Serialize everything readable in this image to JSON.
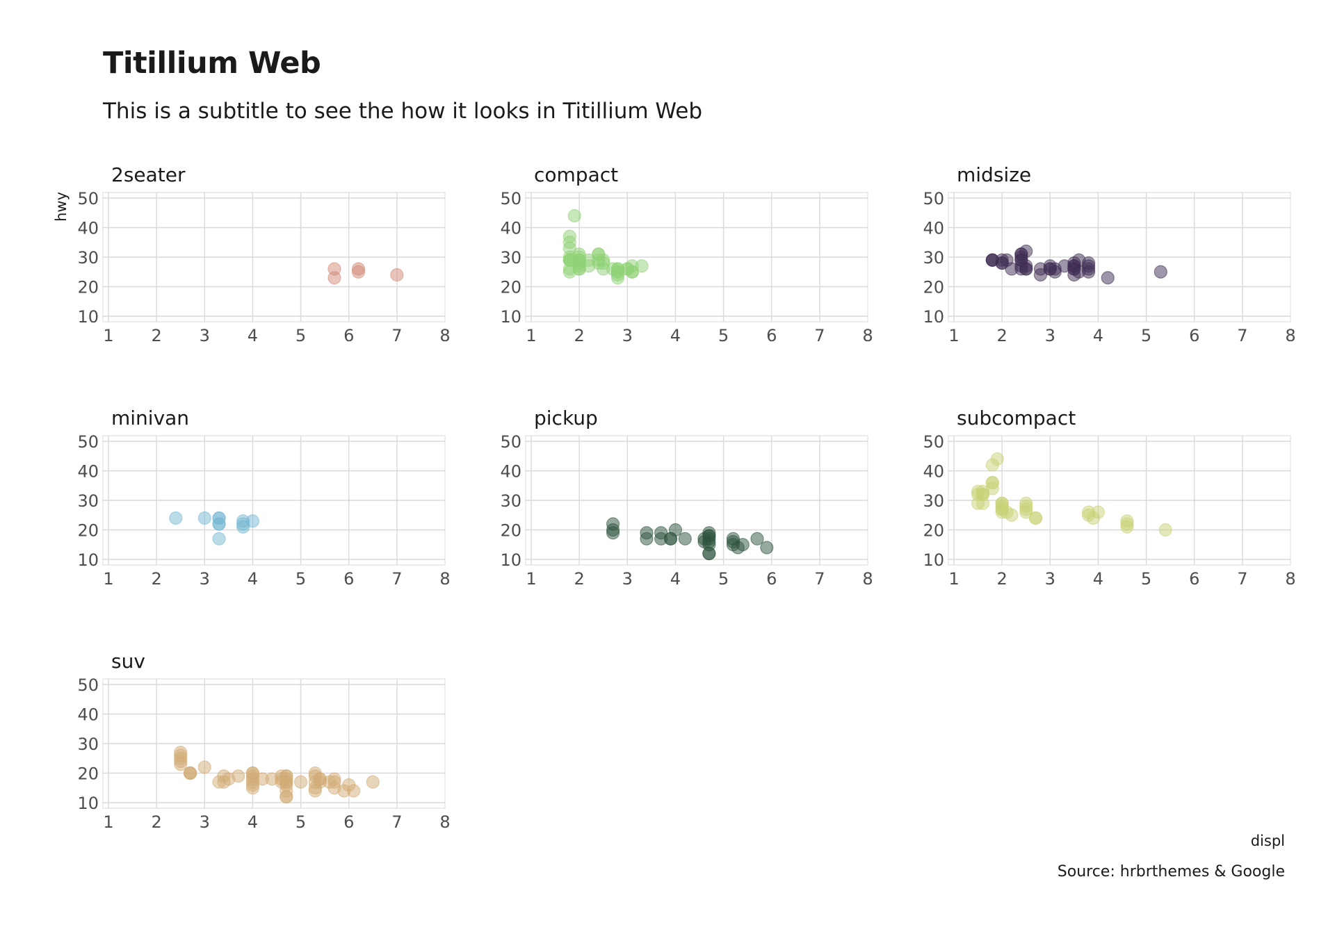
{
  "title": "Titillium Web",
  "subtitle": "This is a subtitle to see the how it looks in Titillium Web",
  "caption": "Source: hrbrthemes & Google",
  "chart_data": {
    "type": "scatter",
    "xlabel": "displ",
    "ylabel": "hwy",
    "xlim": [
      1,
      8
    ],
    "ylim": [
      10,
      50
    ],
    "xticks": [
      1,
      2,
      3,
      4,
      5,
      6,
      7,
      8
    ],
    "yticks": [
      10,
      20,
      30,
      40,
      50
    ],
    "grid": true,
    "facets": [
      {
        "name": "2seater",
        "color": "#d18975",
        "points": [
          [
            5.7,
            26
          ],
          [
            5.7,
            23
          ],
          [
            6.2,
            26
          ],
          [
            6.2,
            25
          ],
          [
            7.0,
            24
          ]
        ]
      },
      {
        "name": "compact",
        "color": "#8fd175",
        "points": [
          [
            1.8,
            29
          ],
          [
            1.8,
            29
          ],
          [
            2.0,
            31
          ],
          [
            2.0,
            30
          ],
          [
            2.8,
            26
          ],
          [
            2.8,
            26
          ],
          [
            3.1,
            27
          ],
          [
            1.8,
            26
          ],
          [
            1.8,
            25
          ],
          [
            2.0,
            28
          ],
          [
            2.0,
            27
          ],
          [
            2.8,
            25
          ],
          [
            2.8,
            25
          ],
          [
            3.1,
            25
          ],
          [
            3.1,
            25
          ],
          [
            2.2,
            27
          ],
          [
            2.2,
            29
          ],
          [
            2.4,
            31
          ],
          [
            2.4,
            31
          ],
          [
            3.0,
            26
          ],
          [
            3.0,
            26
          ],
          [
            3.3,
            27
          ],
          [
            1.8,
            33
          ],
          [
            1.8,
            35
          ],
          [
            1.8,
            37
          ],
          [
            1.9,
            44
          ],
          [
            2.0,
            29
          ],
          [
            2.0,
            26
          ],
          [
            2.5,
            29
          ],
          [
            2.5,
            28
          ],
          [
            2.8,
            23
          ],
          [
            2.8,
            24
          ],
          [
            1.8,
            29
          ],
          [
            2.0,
            26
          ],
          [
            2.0,
            29
          ],
          [
            2.4,
            28
          ],
          [
            2.4,
            29
          ],
          [
            2.5,
            26
          ],
          [
            2.7,
            26
          ],
          [
            1.8,
            30
          ],
          [
            2.0,
            28
          ]
        ]
      },
      {
        "name": "midsize",
        "color": "#3f2d54",
        "points": [
          [
            1.8,
            29
          ],
          [
            1.8,
            29
          ],
          [
            2.0,
            28
          ],
          [
            2.0,
            29
          ],
          [
            2.8,
            26
          ],
          [
            3.1,
            26
          ],
          [
            4.2,
            23
          ],
          [
            2.4,
            30
          ],
          [
            2.4,
            31
          ],
          [
            2.5,
            32
          ],
          [
            3.5,
            27
          ],
          [
            3.5,
            26
          ],
          [
            3.0,
            26
          ],
          [
            3.6,
            29
          ],
          [
            3.5,
            28
          ],
          [
            2.2,
            26
          ],
          [
            2.4,
            31
          ],
          [
            2.4,
            29
          ],
          [
            3.5,
            27
          ],
          [
            3.3,
            27
          ],
          [
            3.8,
            26
          ],
          [
            3.8,
            25
          ],
          [
            2.4,
            26
          ],
          [
            3.0,
            27
          ],
          [
            3.5,
            24
          ],
          [
            2.4,
            27
          ],
          [
            2.5,
            26
          ],
          [
            3.1,
            25
          ],
          [
            3.8,
            27
          ],
          [
            1.8,
            29
          ],
          [
            2.0,
            28
          ],
          [
            2.8,
            24
          ],
          [
            2.1,
            29
          ],
          [
            2.5,
            27
          ],
          [
            5.3,
            25
          ],
          [
            3.5,
            26
          ],
          [
            3.6,
            25
          ],
          [
            2.4,
            29
          ],
          [
            2.5,
            26
          ],
          [
            3.0,
            26
          ],
          [
            3.8,
            28
          ]
        ]
      },
      {
        "name": "minivan",
        "color": "#75b8d1",
        "points": [
          [
            2.4,
            24
          ],
          [
            3.0,
            24
          ],
          [
            3.3,
            22
          ],
          [
            3.3,
            22
          ],
          [
            3.3,
            24
          ],
          [
            3.3,
            24
          ],
          [
            3.3,
            17
          ],
          [
            3.8,
            22
          ],
          [
            3.8,
            21
          ],
          [
            3.8,
            23
          ],
          [
            4.0,
            23
          ]
        ]
      },
      {
        "name": "pickup",
        "color": "#2d543d",
        "points": [
          [
            2.7,
            20
          ],
          [
            2.7,
            22
          ],
          [
            2.7,
            19
          ],
          [
            3.4,
            17
          ],
          [
            3.4,
            19
          ],
          [
            3.7,
            17
          ],
          [
            3.7,
            19
          ],
          [
            3.9,
            17
          ],
          [
            3.9,
            17
          ],
          [
            4.0,
            20
          ],
          [
            4.2,
            17
          ],
          [
            4.6,
            17
          ],
          [
            4.7,
            16
          ],
          [
            4.7,
            15
          ],
          [
            4.7,
            12
          ],
          [
            4.7,
            12
          ],
          [
            4.7,
            17
          ],
          [
            4.7,
            19
          ],
          [
            4.7,
            18
          ],
          [
            5.2,
            15
          ],
          [
            5.2,
            16
          ],
          [
            5.3,
            14
          ],
          [
            5.4,
            15
          ],
          [
            5.7,
            17
          ],
          [
            5.9,
            14
          ],
          [
            4.6,
            16
          ],
          [
            4.7,
            18
          ],
          [
            5.2,
            17
          ]
        ]
      },
      {
        "name": "subcompact",
        "color": "#c9d175",
        "points": [
          [
            1.8,
            36
          ],
          [
            1.8,
            36
          ],
          [
            1.8,
            34
          ],
          [
            1.8,
            42
          ],
          [
            1.9,
            44
          ],
          [
            2.0,
            29
          ],
          [
            2.0,
            29
          ],
          [
            2.0,
            28
          ],
          [
            2.0,
            26
          ],
          [
            2.0,
            27
          ],
          [
            2.1,
            26
          ],
          [
            2.2,
            25
          ],
          [
            2.5,
            26
          ],
          [
            2.5,
            28
          ],
          [
            2.5,
            29
          ],
          [
            2.7,
            24
          ],
          [
            3.8,
            26
          ],
          [
            3.8,
            25
          ],
          [
            4.0,
            26
          ],
          [
            4.6,
            23
          ],
          [
            4.6,
            22
          ],
          [
            5.4,
            20
          ],
          [
            1.6,
            33
          ],
          [
            1.6,
            32
          ],
          [
            1.6,
            32
          ],
          [
            1.6,
            29
          ],
          [
            1.5,
            32
          ],
          [
            1.5,
            29
          ],
          [
            1.5,
            33
          ],
          [
            2.0,
            27
          ],
          [
            2.5,
            27
          ],
          [
            2.7,
            24
          ],
          [
            3.9,
            24
          ],
          [
            4.6,
            21
          ]
        ]
      },
      {
        "name": "suv",
        "color": "#d1ab75",
        "points": [
          [
            2.5,
            25
          ],
          [
            2.5,
            26
          ],
          [
            2.5,
            24
          ],
          [
            2.5,
            27
          ],
          [
            2.5,
            23
          ],
          [
            2.7,
            20
          ],
          [
            2.7,
            20
          ],
          [
            3.0,
            22
          ],
          [
            3.3,
            17
          ],
          [
            3.4,
            17
          ],
          [
            3.4,
            19
          ],
          [
            3.7,
            19
          ],
          [
            4.0,
            17
          ],
          [
            4.0,
            19
          ],
          [
            4.0,
            20
          ],
          [
            4.0,
            20
          ],
          [
            4.0,
            15
          ],
          [
            4.0,
            18
          ],
          [
            4.0,
            16
          ],
          [
            4.2,
            18
          ],
          [
            4.4,
            18
          ],
          [
            4.6,
            19
          ],
          [
            4.6,
            17
          ],
          [
            4.7,
            19
          ],
          [
            4.7,
            17
          ],
          [
            4.7,
            16
          ],
          [
            4.7,
            14
          ],
          [
            4.7,
            12
          ],
          [
            4.7,
            12
          ],
          [
            4.7,
            19
          ],
          [
            4.7,
            17
          ],
          [
            5.0,
            17
          ],
          [
            5.3,
            14
          ],
          [
            5.3,
            15
          ],
          [
            5.3,
            20
          ],
          [
            5.3,
            19
          ],
          [
            5.4,
            17
          ],
          [
            5.4,
            18
          ],
          [
            5.6,
            17
          ],
          [
            5.7,
            18
          ],
          [
            5.7,
            15
          ],
          [
            5.7,
            17
          ],
          [
            5.9,
            14
          ],
          [
            6.0,
            16
          ],
          [
            6.1,
            14
          ],
          [
            6.5,
            17
          ],
          [
            5.3,
            17
          ],
          [
            4.6,
            18
          ],
          [
            2.7,
            20
          ],
          [
            3.5,
            18
          ],
          [
            4.7,
            18
          ],
          [
            5.4,
            18
          ]
        ]
      }
    ]
  }
}
